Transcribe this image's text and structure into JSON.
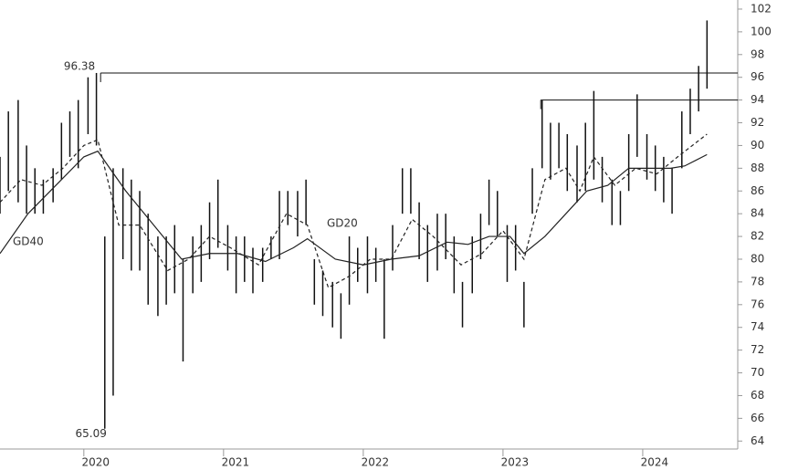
{
  "chart_data": {
    "type": "ohlc",
    "xlim": [
      2019.4,
      2024.68
    ],
    "xticks": [
      2020,
      2021,
      2022,
      2023,
      2024
    ],
    "ylim": [
      63.3,
      102.8
    ],
    "yticks": [
      64,
      66,
      68,
      70,
      72,
      74,
      76,
      78,
      80,
      82,
      84,
      86,
      88,
      90,
      92,
      94,
      96,
      98,
      100,
      102
    ],
    "bars": {
      "x": [
        2019.4,
        2019.46,
        2019.53,
        2019.59,
        2019.65,
        2019.71,
        2019.78,
        2019.84,
        2019.9,
        2019.96,
        2020.03,
        2020.09,
        2020.15,
        2020.21,
        2020.28,
        2020.34,
        2020.4,
        2020.46,
        2020.53,
        2020.59,
        2020.65,
        2020.71,
        2020.78,
        2020.84,
        2020.9,
        2020.96,
        2021.03,
        2021.09,
        2021.15,
        2021.21,
        2021.28,
        2021.34,
        2021.4,
        2021.46,
        2021.53,
        2021.59,
        2021.65,
        2021.71,
        2021.78,
        2021.84,
        2021.9,
        2021.96,
        2022.03,
        2022.09,
        2022.15,
        2022.21,
        2022.28,
        2022.34,
        2022.4,
        2022.46,
        2022.53,
        2022.59,
        2022.65,
        2022.71,
        2022.78,
        2022.84,
        2022.9,
        2022.96,
        2023.03,
        2023.09,
        2023.15,
        2023.21,
        2023.28,
        2023.34,
        2023.4,
        2023.46,
        2023.53,
        2023.59,
        2023.65,
        2023.71,
        2023.78,
        2023.84,
        2023.9,
        2023.96,
        2024.03,
        2024.09,
        2024.15,
        2024.21,
        2024.28,
        2024.34,
        2024.4,
        2024.46
      ],
      "high": [
        89,
        93,
        94,
        90,
        88,
        87,
        88,
        92,
        93,
        94,
        96,
        96.38,
        82,
        88,
        88,
        87,
        86,
        84,
        82,
        82,
        83,
        80,
        82,
        83,
        85,
        87,
        83,
        82,
        82,
        81,
        81,
        82,
        86,
        86,
        86,
        87,
        80,
        79,
        78,
        77,
        82,
        81,
        82,
        81,
        80,
        83,
        88,
        88,
        85,
        83,
        84,
        84,
        82,
        78,
        82,
        84,
        87,
        86,
        83,
        83,
        78,
        88,
        94,
        92,
        92,
        91,
        90,
        92,
        94.8,
        89,
        87,
        86,
        91,
        94.5,
        91,
        90,
        89,
        88,
        93,
        95,
        97,
        101
      ],
      "low": [
        84,
        86,
        85,
        84,
        84,
        84,
        85,
        87,
        89,
        88,
        91,
        90,
        65.09,
        68,
        80,
        79,
        79,
        76,
        75,
        76,
        77,
        71,
        77,
        78,
        80,
        81,
        79,
        77,
        78,
        77,
        78,
        80,
        80,
        83,
        82,
        83,
        76,
        75,
        74,
        73,
        76,
        78,
        77,
        78,
        73,
        79,
        84,
        84,
        80,
        78,
        79,
        80,
        77,
        74,
        77,
        80,
        83,
        82,
        78,
        79,
        74,
        84,
        88,
        87,
        88,
        86,
        85,
        86,
        87,
        85,
        83,
        83,
        86,
        89,
        87,
        86,
        85,
        84,
        88,
        91,
        93,
        95
      ]
    },
    "ma": [
      {
        "name": "GD40",
        "dash": false,
        "color": "#222",
        "x": [
          2019.4,
          2019.6,
          2019.8,
          2020.0,
          2020.1,
          2020.3,
          2020.5,
          2020.7,
          2020.9,
          2021.1,
          2021.3,
          2021.5,
          2021.6,
          2021.8,
          2022.0,
          2022.2,
          2022.4,
          2022.6,
          2022.75,
          2022.9,
          2023.05,
          2023.15,
          2023.3,
          2023.45,
          2023.6,
          2023.75,
          2023.9,
          2024.05,
          2024.2,
          2024.3,
          2024.46
        ],
        "values": [
          80.5,
          84,
          86.5,
          89,
          89.5,
          86,
          83,
          80,
          80.5,
          80.5,
          79.8,
          81,
          81.8,
          80,
          79.5,
          80,
          80.3,
          81.5,
          81.3,
          82,
          82,
          80.5,
          82,
          84,
          86,
          86.5,
          88,
          88,
          88,
          88.2,
          89.2
        ]
      },
      {
        "name": "GD20",
        "dash": true,
        "color": "#222",
        "x": [
          2019.4,
          2019.55,
          2019.7,
          2019.85,
          2020.0,
          2020.1,
          2020.25,
          2020.4,
          2020.6,
          2020.75,
          2020.9,
          2021.05,
          2021.25,
          2021.45,
          2021.6,
          2021.75,
          2021.9,
          2022.05,
          2022.2,
          2022.35,
          2022.5,
          2022.7,
          2022.85,
          2023.0,
          2023.15,
          2023.3,
          2023.45,
          2023.55,
          2023.65,
          2023.8,
          2023.95,
          2024.1,
          2024.25,
          2024.46
        ],
        "values": [
          85,
          87,
          86.5,
          88,
          90,
          90.5,
          83,
          83,
          79,
          80,
          82,
          81,
          79.5,
          84,
          83,
          77.5,
          78.5,
          80,
          80,
          83.5,
          82,
          79.5,
          80.5,
          82.5,
          80,
          87,
          88,
          86,
          89,
          86.5,
          88,
          87.5,
          89,
          91
        ]
      }
    ],
    "levels": [
      {
        "value": 96.38,
        "from": 2020.12
      },
      {
        "value": 94,
        "from": 2023.27
      }
    ],
    "low_mark": {
      "value": 65.09,
      "x": 2020.19
    }
  }
}
